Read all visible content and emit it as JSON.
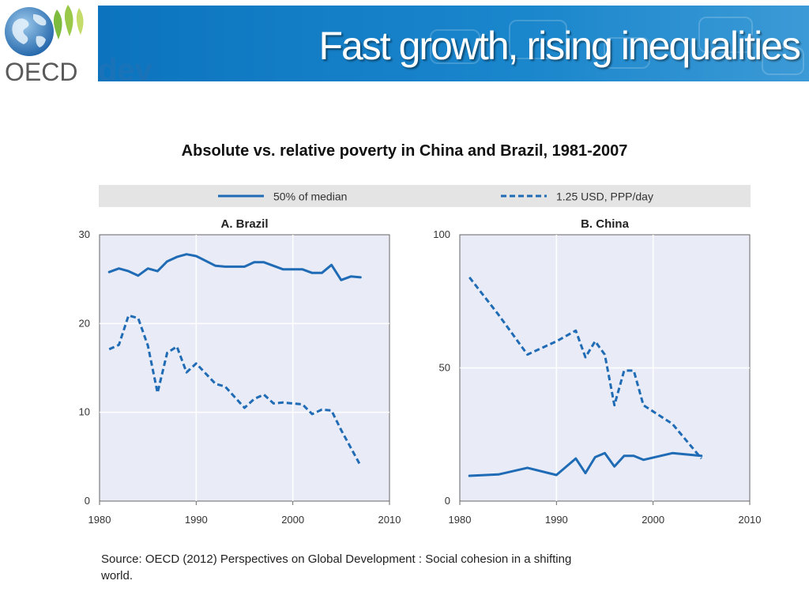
{
  "header": {
    "title": "Fast growth, rising inequalities",
    "logo_text": "OECD",
    "logo_suffix": "dev",
    "colors": {
      "band": "#0c74bf",
      "logo_text": "#5a5a5a",
      "dev_text": "#1a73b8"
    }
  },
  "subtitle": "Absolute vs. relative poverty in China and Brazil, 1981-2007",
  "source": {
    "line1": "Source:  OECD (2012) Perspectives on Global Development : Social cohesion in a shifting",
    "line2": "world."
  },
  "chart_data": [
    {
      "type": "line",
      "title": "A. Brazil",
      "xlim": [
        1980,
        2010
      ],
      "ylim": [
        0,
        30
      ],
      "xticks": [
        1980,
        1990,
        2000,
        2010
      ],
      "yticks": [
        0,
        10,
        20,
        30
      ],
      "grid": true,
      "legend_position": "top",
      "series": [
        {
          "name": "50% of median",
          "style": "solid",
          "color": "#1f6bb5",
          "x": [
            1981,
            1982,
            1983,
            1984,
            1985,
            1986,
            1987,
            1988,
            1989,
            1990,
            1992,
            1993,
            1995,
            1996,
            1997,
            1998,
            1999,
            2001,
            2002,
            2003,
            2004,
            2005,
            2006,
            2007
          ],
          "y": [
            25.8,
            26.2,
            25.9,
            25.4,
            26.2,
            25.9,
            27.0,
            27.5,
            27.8,
            27.6,
            26.5,
            26.4,
            26.4,
            26.9,
            26.9,
            26.5,
            26.1,
            26.1,
            25.7,
            25.7,
            26.6,
            24.9,
            25.3,
            25.2
          ]
        },
        {
          "name": "1.25 USD, PPP/day",
          "style": "dashed",
          "color": "#1f6bb5",
          "x": [
            1981,
            1982,
            1983,
            1984,
            1985,
            1986,
            1987,
            1988,
            1989,
            1990,
            1992,
            1993,
            1995,
            1996,
            1997,
            1998,
            1999,
            2001,
            2002,
            2003,
            2004,
            2005,
            2006,
            2007
          ],
          "y": [
            17.1,
            17.6,
            20.9,
            20.6,
            17.5,
            12.2,
            16.7,
            17.4,
            14.5,
            15.5,
            13.2,
            12.9,
            10.5,
            11.5,
            12.0,
            11.0,
            11.1,
            10.9,
            9.8,
            10.3,
            10.2,
            8.0,
            6.0,
            4.0
          ]
        }
      ]
    },
    {
      "type": "line",
      "title": "B. China",
      "xlim": [
        1980,
        2010
      ],
      "ylim": [
        0,
        100
      ],
      "xticks": [
        1980,
        1990,
        2000,
        2010
      ],
      "yticks": [
        0,
        50,
        100
      ],
      "grid": true,
      "legend_position": "top",
      "series": [
        {
          "name": "50% of median",
          "style": "solid",
          "color": "#1f6bb5",
          "x": [
            1981,
            1984,
            1987,
            1990,
            1992,
            1993,
            1994,
            1995,
            1996,
            1997,
            1998,
            1999,
            2002,
            2005
          ],
          "y": [
            9.5,
            10.0,
            12.5,
            9.8,
            16.0,
            10.5,
            16.5,
            18.0,
            13.0,
            17.0,
            17.0,
            15.5,
            18.0,
            17.0
          ]
        },
        {
          "name": "1.25 USD, PPP/day",
          "style": "dashed",
          "color": "#1f6bb5",
          "x": [
            1981,
            1984,
            1987,
            1990,
            1992,
            1993,
            1994,
            1995,
            1996,
            1997,
            1998,
            1999,
            2002,
            2005
          ],
          "y": [
            84,
            70,
            55,
            60,
            64,
            54,
            60,
            55,
            36,
            49,
            49,
            36,
            29,
            16
          ]
        }
      ]
    }
  ]
}
